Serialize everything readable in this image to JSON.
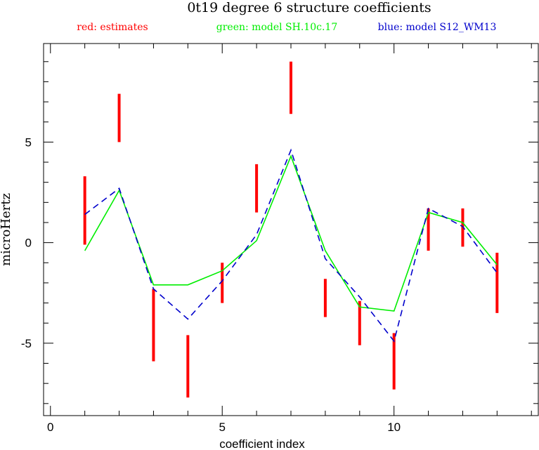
{
  "chart_data": {
    "type": "line",
    "title": "0t19 degree 6 structure coefficients",
    "legend": [
      {
        "label": "red: estimates",
        "color": "#ff0000"
      },
      {
        "label": "green: model SH.10c.17",
        "color": "#00ee00"
      },
      {
        "label": "blue: model S12_WM13",
        "color": "#0000cc"
      }
    ],
    "legend_placement": "top",
    "xlabel": "coefficient index",
    "ylabel": "microHertz",
    "xlim": [
      -0.2,
      14.2
    ],
    "ylim": [
      -8.6,
      9.9
    ],
    "grid": false,
    "x_ticks": {
      "major": [
        0,
        5,
        10
      ],
      "major_labels": [
        "0",
        "5",
        "10"
      ],
      "minor": [
        1,
        2,
        3,
        4,
        6,
        7,
        8,
        9,
        11,
        12,
        13,
        14
      ]
    },
    "y_ticks": {
      "major": [
        -5,
        0,
        5
      ],
      "major_labels": [
        "-5",
        "0",
        "5"
      ],
      "minor": [
        -8,
        -7,
        -6,
        -4,
        -3,
        -2,
        -1,
        1,
        2,
        3,
        4,
        6,
        7,
        8,
        9
      ]
    },
    "estimates": {
      "style": "error-bars",
      "color": "#ff0000",
      "x": [
        1,
        2,
        3,
        4,
        5,
        6,
        7,
        8,
        9,
        10,
        11,
        12,
        13
      ],
      "low": [
        -0.1,
        5.0,
        -5.9,
        -7.7,
        -3.0,
        1.5,
        6.4,
        -3.7,
        -5.1,
        -7.3,
        -0.4,
        -0.2,
        -3.5
      ],
      "high": [
        3.3,
        7.4,
        -2.3,
        -4.6,
        -1.0,
        3.9,
        9.0,
        -1.8,
        -2.9,
        -4.5,
        1.7,
        1.7,
        -0.5
      ]
    },
    "series": [
      {
        "name": "model SH.10c.17",
        "color": "#00ee00",
        "dash": "solid",
        "x": [
          1,
          2,
          3,
          4,
          5,
          6,
          7,
          8,
          9,
          10,
          11,
          12,
          13
        ],
        "values": [
          -0.4,
          2.6,
          -2.1,
          -2.1,
          -1.4,
          0.1,
          4.3,
          -0.4,
          -3.2,
          -3.4,
          1.5,
          1.0,
          -1.1
        ]
      },
      {
        "name": "model S12_WM13",
        "color": "#0000cc",
        "dash": "dashed",
        "x": [
          1,
          2,
          3,
          4,
          5,
          6,
          7,
          8,
          9,
          10,
          11,
          12,
          13
        ],
        "values": [
          1.4,
          2.7,
          -2.3,
          -3.8,
          -1.9,
          0.4,
          4.6,
          -0.8,
          -2.7,
          -4.9,
          1.7,
          0.8,
          -1.5
        ]
      }
    ]
  }
}
